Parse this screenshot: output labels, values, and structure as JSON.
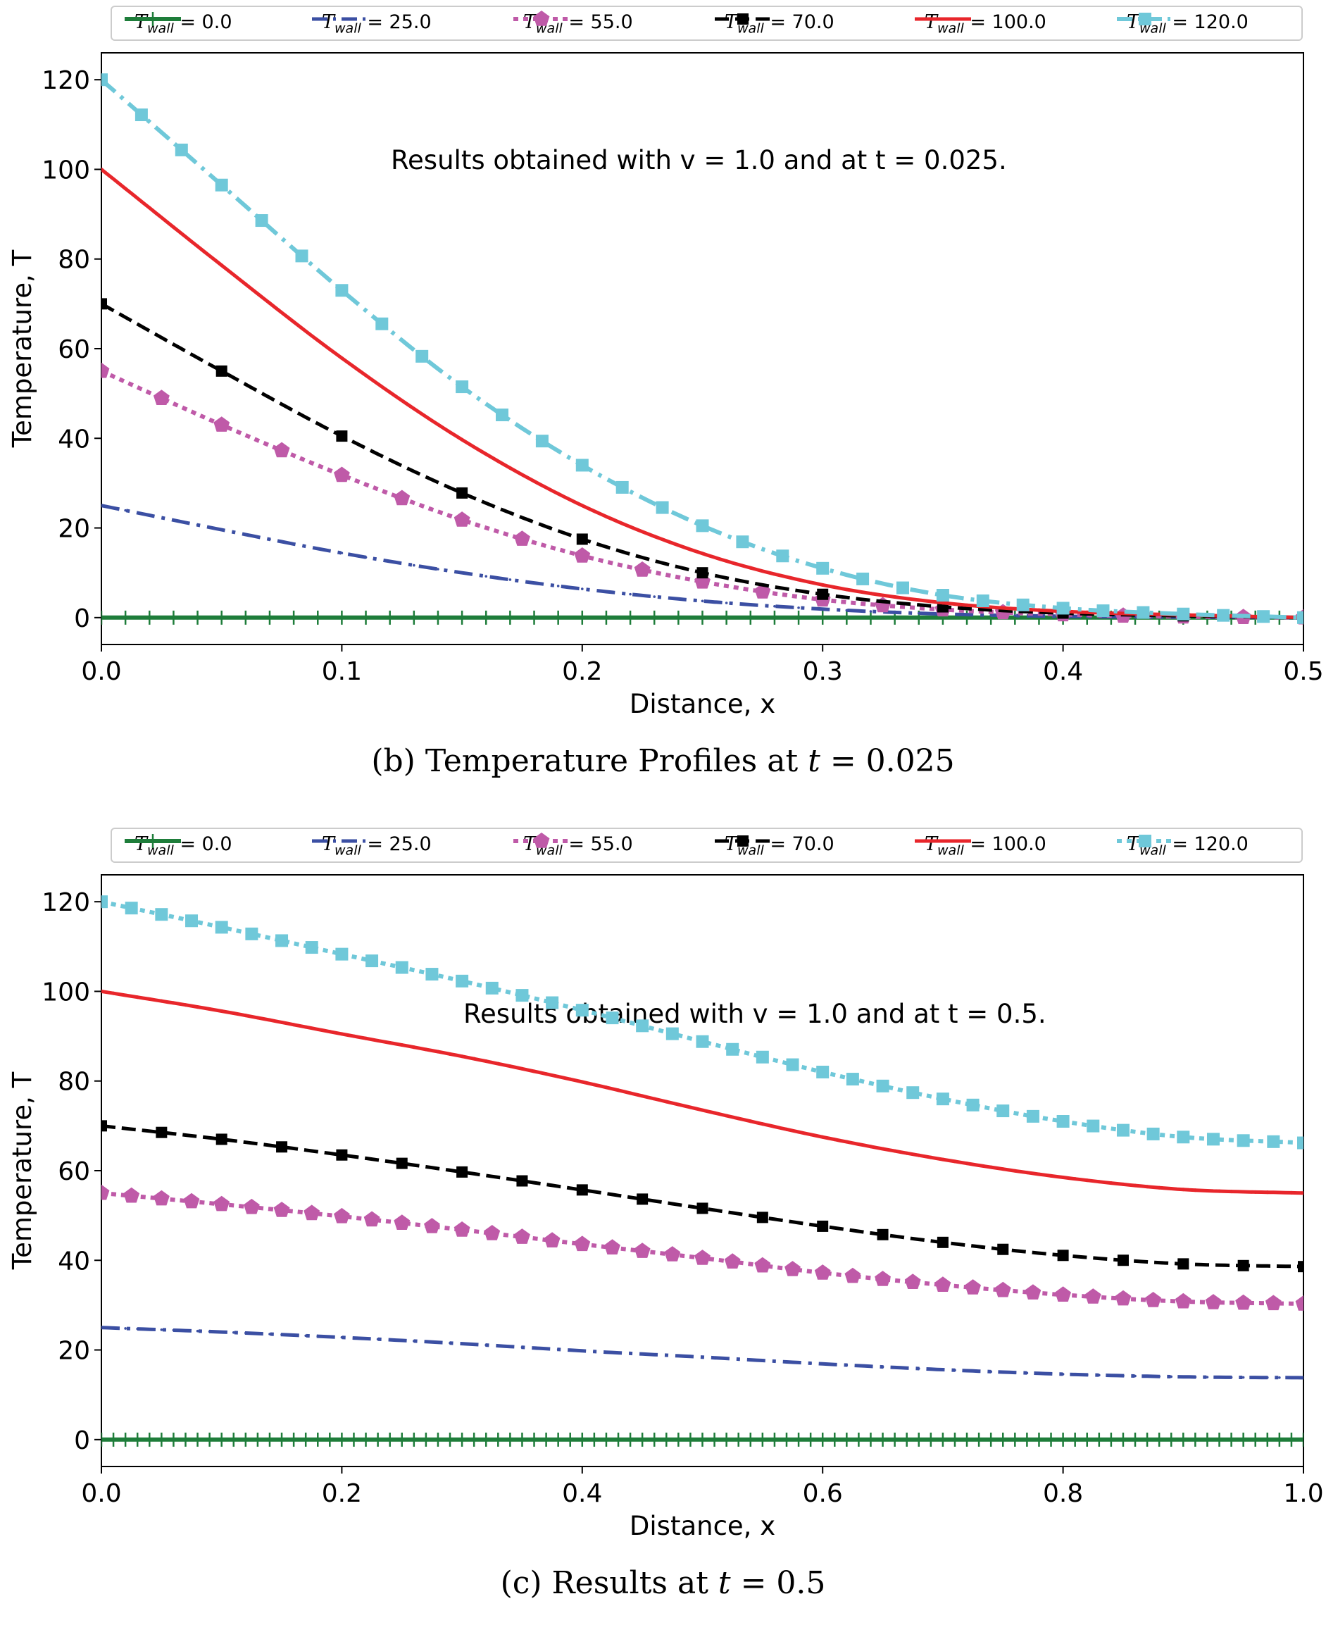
{
  "chart_data": [
    {
      "type": "line",
      "caption": "(b) Temperature Profiles at t = 0.025",
      "caption_prefix": "(b) Temperature Profiles at",
      "caption_var": "t",
      "caption_value": "= 0.025",
      "annotation": "Results obtained with v = 1.0 and  at t = 0.025.",
      "xlabel": "Distance, x",
      "ylabel": "Temperature, T",
      "xlim": [
        0,
        0.5
      ],
      "ylim": [
        -6,
        126
      ],
      "xticks": [
        0.0,
        0.1,
        0.2,
        0.3,
        0.4,
        0.5
      ],
      "xtick_labels": [
        "0.0",
        "0.1",
        "0.2",
        "0.3",
        "0.4",
        "0.5"
      ],
      "yticks": [
        0,
        20,
        40,
        60,
        80,
        100,
        120
      ],
      "ytick_labels": [
        "0",
        "20",
        "40",
        "60",
        "80",
        "100",
        "120"
      ],
      "grid": false,
      "legend_position": "top (outside, one row)",
      "x": [
        0.0,
        0.05,
        0.1,
        0.15,
        0.2,
        0.25,
        0.3,
        0.35,
        0.4,
        0.45,
        0.5
      ],
      "series": [
        {
          "name": "T_wall = 0.0",
          "wall": "0.0",
          "color": "#1e7d3a",
          "style": "solid-plus",
          "values": [
            0,
            0,
            0,
            0,
            0,
            0,
            0,
            0,
            0,
            0,
            0
          ]
        },
        {
          "name": "T_wall = 25.0",
          "wall": "25.0",
          "color": "#3b4fa3",
          "style": "dashdot",
          "values": [
            25,
            19.6,
            14.4,
            10.0,
            6.4,
            3.7,
            1.9,
            0.8,
            0.3,
            0.1,
            0.0
          ]
        },
        {
          "name": "T_wall = 55.0",
          "wall": "55.0",
          "color": "#bf5aa8",
          "style": "dotted-pentagon",
          "values": [
            55,
            43.0,
            31.8,
            21.8,
            13.8,
            8.0,
            4.0,
            1.8,
            0.7,
            0.2,
            0.0
          ]
        },
        {
          "name": "T_wall = 70.0",
          "wall": "70.0",
          "color": "#000000",
          "style": "dashed-square",
          "values": [
            70,
            55.0,
            40.5,
            27.8,
            17.5,
            10.0,
            5.2,
            2.4,
            1.0,
            0.4,
            0.0
          ]
        },
        {
          "name": "T_wall = 100.0",
          "wall": "100.0",
          "color": "#e8262b",
          "style": "solid",
          "values": [
            100,
            78.6,
            57.9,
            39.7,
            25.0,
            14.3,
            7.3,
            3.3,
            1.4,
            0.6,
            0.0
          ]
        },
        {
          "name": "T_wall = 120.0",
          "wall": "120.0",
          "color": "#6fc8d9",
          "style": "dashdot-square",
          "values": [
            120,
            96.5,
            73.0,
            51.5,
            34.0,
            20.5,
            11.0,
            5.0,
            2.1,
            0.8,
            0.0
          ]
        }
      ]
    },
    {
      "type": "line",
      "caption": "(c) Results at t = 0.5",
      "caption_prefix": "(c) Results at",
      "caption_var": "t",
      "caption_value": "= 0.5",
      "annotation": "Results obtained with v = 1.0 and  at t = 0.5.",
      "xlabel": "Distance, x",
      "ylabel": "Temperature, T",
      "xlim": [
        0,
        1.0
      ],
      "ylim": [
        -6,
        126
      ],
      "xticks": [
        0.0,
        0.2,
        0.4,
        0.6,
        0.8,
        1.0
      ],
      "xtick_labels": [
        "0.0",
        "0.2",
        "0.4",
        "0.6",
        "0.8",
        "1.0"
      ],
      "yticks": [
        0,
        20,
        40,
        60,
        80,
        100,
        120
      ],
      "ytick_labels": [
        "0",
        "20",
        "40",
        "60",
        "80",
        "100",
        "120"
      ],
      "grid": false,
      "legend_position": "top (outside, one row)",
      "x": [
        0.0,
        0.1,
        0.2,
        0.3,
        0.4,
        0.5,
        0.6,
        0.7,
        0.8,
        0.9,
        1.0
      ],
      "series": [
        {
          "name": "T_wall = 0.0",
          "wall": "0.0",
          "color": "#1e7d3a",
          "style": "solid-plus",
          "values": [
            0,
            0,
            0,
            0,
            0,
            0,
            0,
            0,
            0,
            0,
            0
          ]
        },
        {
          "name": "T_wall = 25.0",
          "wall": "25.0",
          "color": "#3b4fa3",
          "style": "dashdot",
          "values": [
            25,
            24.0,
            22.8,
            21.4,
            19.8,
            18.4,
            16.9,
            15.6,
            14.6,
            14.0,
            13.8
          ]
        },
        {
          "name": "T_wall = 55.0",
          "wall": "55.0",
          "color": "#bf5aa8",
          "style": "dotted-pentagon",
          "values": [
            55,
            52.5,
            49.8,
            46.8,
            43.6,
            40.5,
            37.2,
            34.5,
            32.3,
            30.8,
            30.3
          ]
        },
        {
          "name": "T_wall = 70.0",
          "wall": "70.0",
          "color": "#000000",
          "style": "dashed-square",
          "values": [
            70,
            67.0,
            63.5,
            59.7,
            55.7,
            51.6,
            47.6,
            44.0,
            41.1,
            39.2,
            38.6
          ]
        },
        {
          "name": "T_wall = 100.0",
          "wall": "100.0",
          "color": "#e8262b",
          "style": "solid",
          "values": [
            100,
            95.6,
            90.5,
            85.5,
            79.8,
            73.5,
            67.5,
            62.5,
            58.5,
            55.8,
            55.0
          ]
        },
        {
          "name": "T_wall = 120.0",
          "wall": "120.0",
          "color": "#6fc8d9",
          "style": "dotted-square",
          "values": [
            120,
            114.3,
            108.3,
            102.3,
            95.8,
            88.8,
            82.0,
            76.0,
            71.0,
            67.5,
            66.2
          ]
        }
      ]
    }
  ]
}
